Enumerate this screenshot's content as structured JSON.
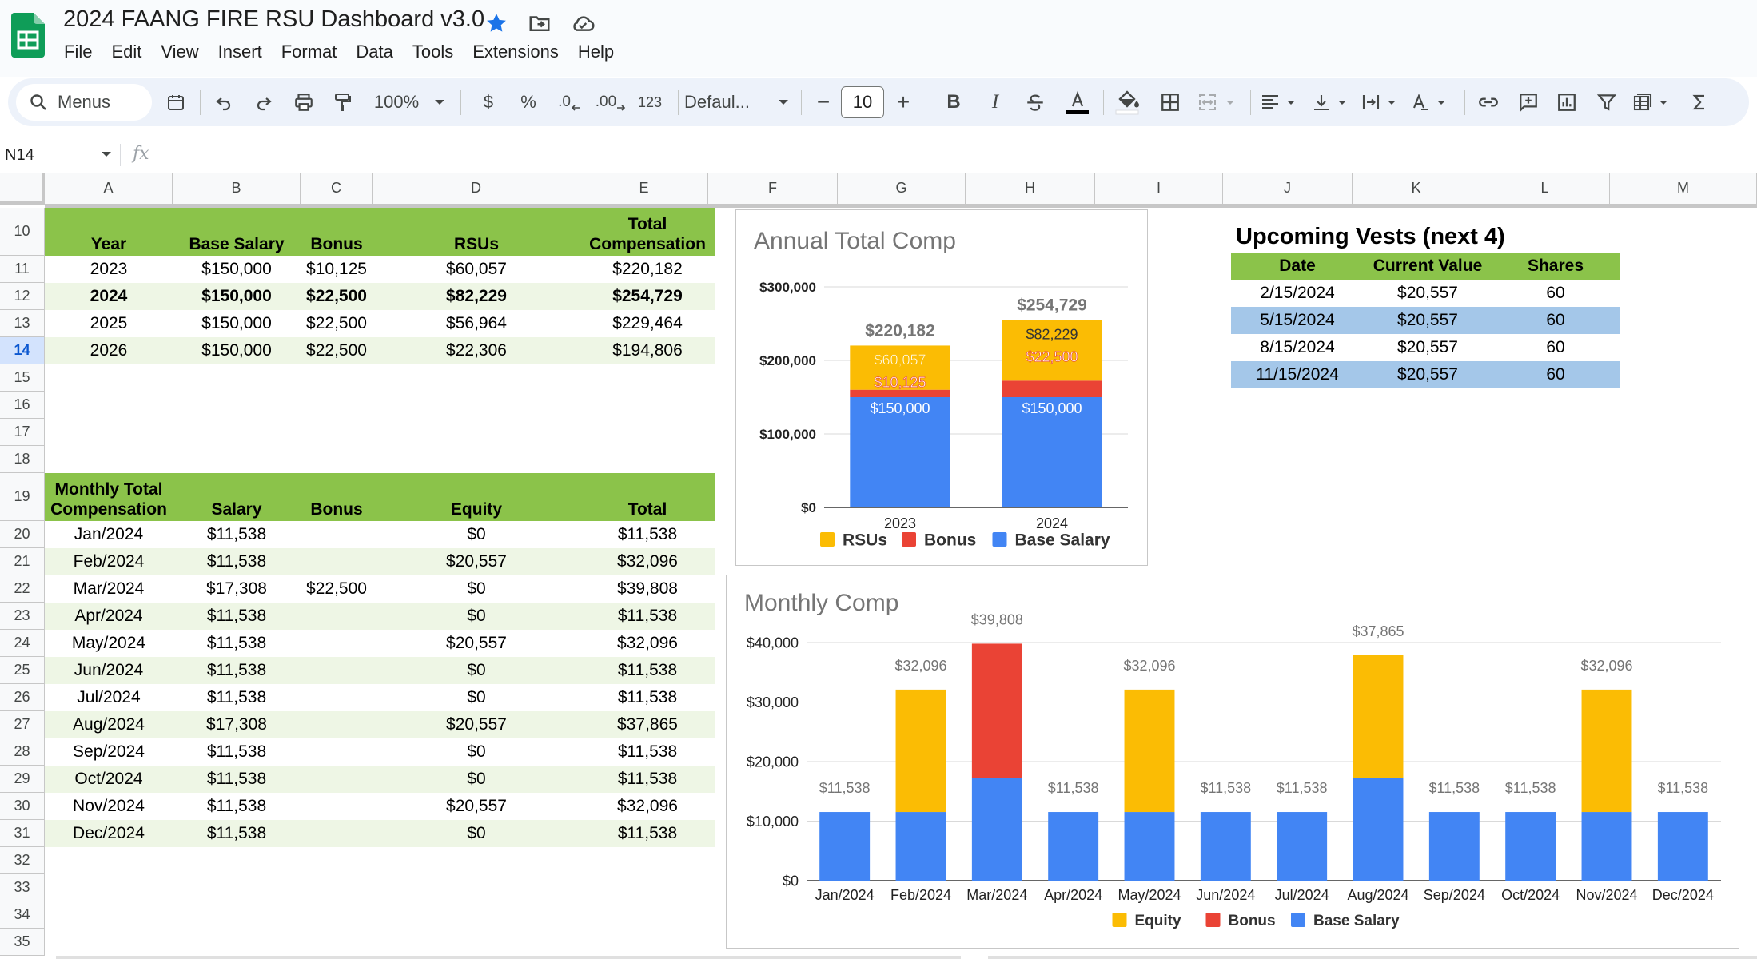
{
  "doc": {
    "title": "2024 FAANG FIRE RSU Dashboard v3.0"
  },
  "title_icons": [
    "star-icon",
    "move-to-folder-icon",
    "cloud-status-icon"
  ],
  "menu": [
    "File",
    "Edit",
    "View",
    "Insert",
    "Format",
    "Data",
    "Tools",
    "Extensions",
    "Help"
  ],
  "toolbar": {
    "search_label": "Menus",
    "zoom": "100%",
    "currency": "$",
    "percent": "%",
    "decrease_decimal": ".0",
    "increase_decimal": ".00",
    "number_format": "123",
    "font": "Defaul...",
    "minus": "−",
    "font_size": "10",
    "plus": "+"
  },
  "formula_bar": {
    "name_box": "N14",
    "fx": "fx"
  },
  "columns": [
    "A",
    "B",
    "C",
    "D",
    "E",
    "F",
    "G",
    "H",
    "I",
    "J",
    "K",
    "L",
    "M"
  ],
  "row_numbers": [
    "10",
    "11",
    "12",
    "13",
    "14",
    "15",
    "16",
    "17",
    "18",
    "19",
    "20",
    "21",
    "22",
    "23",
    "24",
    "25",
    "26",
    "27",
    "28",
    "29",
    "30",
    "31",
    "32",
    "33",
    "34",
    "35"
  ],
  "selected_row": "14",
  "annual_table": {
    "headers": [
      "Year",
      "Base Salary",
      "Bonus",
      "RSUs",
      "Total\nCompensation"
    ],
    "rows": [
      [
        "2023",
        "$150,000",
        "$10,125",
        "$60,057",
        "$220,182"
      ],
      [
        "2024",
        "$150,000",
        "$22,500",
        "$82,229",
        "$254,729"
      ],
      [
        "2025",
        "$150,000",
        "$22,500",
        "$56,964",
        "$229,464"
      ],
      [
        "2026",
        "$150,000",
        "$22,500",
        "$22,306",
        "$194,806"
      ]
    ]
  },
  "monthly_table": {
    "headers": [
      "Monthly Total\nCompensation",
      "Salary",
      "Bonus",
      "Equity",
      "Total"
    ],
    "rows": [
      [
        "Jan/2024",
        "$11,538",
        "",
        "$0",
        "$11,538"
      ],
      [
        "Feb/2024",
        "$11,538",
        "",
        "$20,557",
        "$32,096"
      ],
      [
        "Mar/2024",
        "$17,308",
        "$22,500",
        "$0",
        "$39,808"
      ],
      [
        "Apr/2024",
        "$11,538",
        "",
        "$0",
        "$11,538"
      ],
      [
        "May/2024",
        "$11,538",
        "",
        "$20,557",
        "$32,096"
      ],
      [
        "Jun/2024",
        "$11,538",
        "",
        "$0",
        "$11,538"
      ],
      [
        "Jul/2024",
        "$11,538",
        "",
        "$0",
        "$11,538"
      ],
      [
        "Aug/2024",
        "$17,308",
        "",
        "$20,557",
        "$37,865"
      ],
      [
        "Sep/2024",
        "$11,538",
        "",
        "$0",
        "$11,538"
      ],
      [
        "Oct/2024",
        "$11,538",
        "",
        "$0",
        "$11,538"
      ],
      [
        "Nov/2024",
        "$11,538",
        "",
        "$20,557",
        "$32,096"
      ],
      [
        "Dec/2024",
        "$11,538",
        "",
        "$0",
        "$11,538"
      ]
    ]
  },
  "vests": {
    "title": "Upcoming Vests (next 4)",
    "headers": [
      "Date",
      "Current Value",
      "Shares"
    ],
    "rows": [
      [
        "2/15/2024",
        "$20,557",
        "60"
      ],
      [
        "5/15/2024",
        "$20,557",
        "60"
      ],
      [
        "8/15/2024",
        "$20,557",
        "60"
      ],
      [
        "11/15/2024",
        "$20,557",
        "60"
      ]
    ]
  },
  "colors": {
    "rsu": "#fbbc04",
    "bonus": "#ea4335",
    "base": "#4285f4",
    "header_green": "#8bc34a",
    "band_green": "#eef6e5",
    "band_blue": "#a4c7e9"
  },
  "chart_data": [
    {
      "type": "bar",
      "stacked": true,
      "title": "Annual Total Comp",
      "categories": [
        "2023",
        "2024"
      ],
      "series": [
        {
          "name": "Base Salary",
          "values": [
            150000,
            150000
          ],
          "labels": [
            "$150,000",
            "$150,000"
          ]
        },
        {
          "name": "Bonus",
          "values": [
            10125,
            22500
          ],
          "labels": [
            "$10,125",
            "$22,500"
          ]
        },
        {
          "name": "RSUs",
          "values": [
            60057,
            82229
          ],
          "labels": [
            "$60,057",
            "$82,229"
          ]
        }
      ],
      "totals": [
        "$220,182",
        "$254,729"
      ],
      "ylim": [
        0,
        300000
      ],
      "yticks": [
        "$0",
        "$100,000",
        "$200,000",
        "$300,000"
      ],
      "legend_order": [
        "RSUs",
        "Bonus",
        "Base Salary"
      ],
      "legend_position": "bottom"
    },
    {
      "type": "bar",
      "stacked": true,
      "title": "Monthly Comp",
      "categories": [
        "Jan/2024",
        "Feb/2024",
        "Mar/2024",
        "Apr/2024",
        "May/2024",
        "Jun/2024",
        "Jul/2024",
        "Aug/2024",
        "Sep/2024",
        "Oct/2024",
        "Nov/2024",
        "Dec/2024"
      ],
      "series": [
        {
          "name": "Base Salary",
          "values": [
            11538,
            11538,
            17308,
            11538,
            11538,
            11538,
            11538,
            17308,
            11538,
            11538,
            11538,
            11538
          ]
        },
        {
          "name": "Bonus",
          "values": [
            0,
            0,
            22500,
            0,
            0,
            0,
            0,
            0,
            0,
            0,
            0,
            0
          ]
        },
        {
          "name": "Equity",
          "values": [
            0,
            20557,
            0,
            0,
            20557,
            0,
            0,
            20557,
            0,
            0,
            20557,
            0
          ]
        }
      ],
      "totals": [
        "$11,538",
        "$32,096",
        "$39,808",
        "$11,538",
        "$32,096",
        "$11,538",
        "$11,538",
        "$37,865",
        "$11,538",
        "$11,538",
        "$32,096",
        "$11,538"
      ],
      "ylim": [
        0,
        40000
      ],
      "yticks": [
        "$0",
        "$10,000",
        "$20,000",
        "$30,000",
        "$40,000"
      ],
      "legend_order": [
        "Equity",
        "Bonus",
        "Base Salary"
      ],
      "legend_position": "bottom"
    }
  ]
}
